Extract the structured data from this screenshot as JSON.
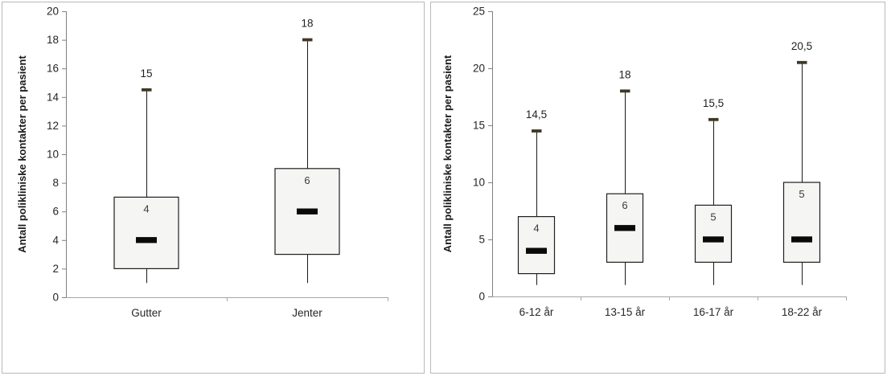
{
  "page": {
    "background": "#ffffff"
  },
  "colors": {
    "panel_border": "#b9b9b9",
    "box_fill": "#f5f5f4",
    "box_border": "#1f1f1f",
    "median_bar": "#0a0a0a",
    "whisker_line": "#1a1a1a",
    "whisker_cap": "#3f3826",
    "y_axis_line": "#7f7f7f",
    "x_axis_line": "#a6a6a6",
    "tick_label": "#262626",
    "value_label": "#1f1f1f",
    "median_label": "#3b3b3b",
    "axis_title": "#1a1a1a"
  },
  "chart_data": [
    {
      "type": "boxplot",
      "title": "",
      "xlabel": "",
      "ylabel": "Antall polikliniske kontakter per pasient",
      "grid": false,
      "legend": null,
      "y_axis": {
        "min": 0,
        "max": 20,
        "tick_step": 2,
        "ticks": [
          0,
          2,
          4,
          6,
          8,
          10,
          12,
          14,
          16,
          18,
          20
        ]
      },
      "categories": [
        "Gutter",
        "Jenter"
      ],
      "boxes": [
        {
          "category": "Gutter",
          "whisker_low": 1,
          "q1": 2,
          "median": 4,
          "q3": 7,
          "whisker_high": 14.5,
          "median_label": "4",
          "whisker_high_label": "15"
        },
        {
          "category": "Jenter",
          "whisker_low": 1,
          "q1": 3,
          "median": 6,
          "q3": 9,
          "whisker_high": 18,
          "median_label": "6",
          "whisker_high_label": "18"
        }
      ]
    },
    {
      "type": "boxplot",
      "title": "",
      "xlabel": "",
      "ylabel": "Antall polikliniske kontakter per pasient",
      "grid": false,
      "legend": null,
      "y_axis": {
        "min": 0,
        "max": 25,
        "tick_step": 5,
        "ticks": [
          0,
          5,
          10,
          15,
          20,
          25
        ]
      },
      "categories": [
        "6-12 år",
        "13-15 år",
        "16-17 år",
        "18-22 år"
      ],
      "boxes": [
        {
          "category": "6-12 år",
          "whisker_low": 1,
          "q1": 2,
          "median": 4,
          "q3": 7,
          "whisker_high": 14.5,
          "median_label": "4",
          "whisker_high_label": "14,5"
        },
        {
          "category": "13-15 år",
          "whisker_low": 1,
          "q1": 3,
          "median": 6,
          "q3": 9,
          "whisker_high": 18,
          "median_label": "6",
          "whisker_high_label": "18"
        },
        {
          "category": "16-17 år",
          "whisker_low": 1,
          "q1": 3,
          "median": 5,
          "q3": 8,
          "whisker_high": 15.5,
          "median_label": "5",
          "whisker_high_label": "15,5"
        },
        {
          "category": "18-22 år",
          "whisker_low": 1,
          "q1": 3,
          "median": 5,
          "q3": 10,
          "whisker_high": 20.5,
          "median_label": "5",
          "whisker_high_label": "20,5"
        }
      ]
    }
  ]
}
